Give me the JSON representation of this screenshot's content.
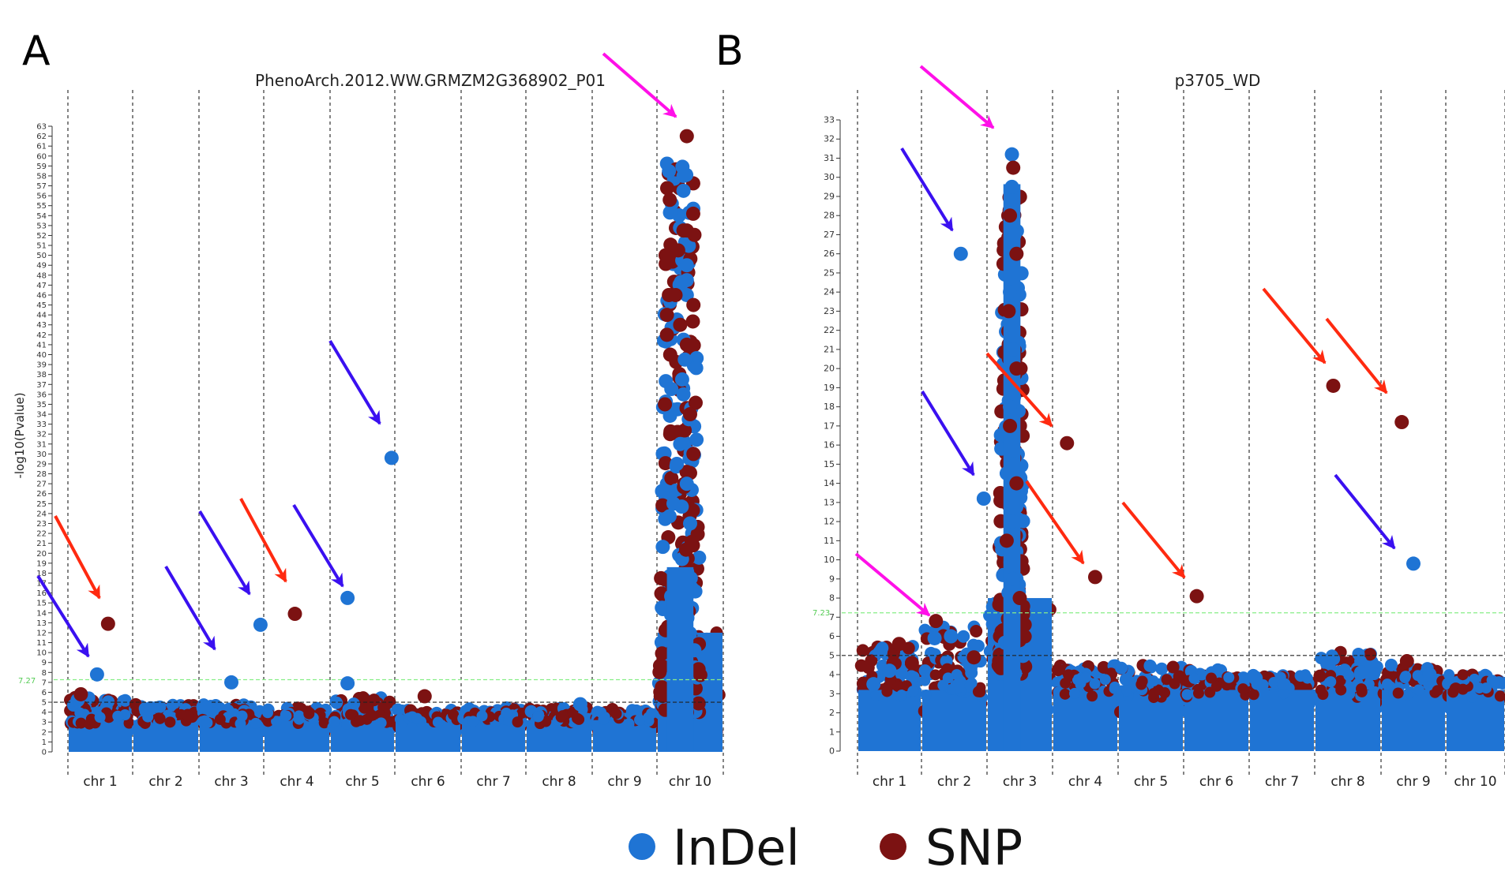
{
  "panels": [
    {
      "letter": "A",
      "title": "PhenoArch.2012.WW.GRMZM2G368902_P01",
      "ylabel": "-log10(Pvalue)",
      "ytick_values": [
        0,
        1,
        2,
        3,
        4,
        5,
        6,
        7,
        8,
        9,
        10,
        11,
        12,
        13,
        14,
        15,
        16,
        17,
        18,
        19,
        20,
        21,
        22,
        23,
        24,
        25,
        26,
        27,
        28,
        29,
        30,
        31,
        32,
        33,
        34,
        35,
        36,
        37,
        38,
        39,
        40,
        41,
        42,
        43,
        44,
        45,
        46,
        47,
        48,
        49,
        50,
        51,
        52,
        53,
        54,
        55,
        56,
        57,
        58,
        59,
        60,
        61,
        62,
        63
      ],
      "threshold_label": "7.27"
    },
    {
      "letter": "B",
      "title": "p3705_WD",
      "ylabel": "",
      "ytick_values": [
        0,
        1,
        2,
        3,
        4,
        5,
        6,
        7,
        8,
        9,
        10,
        11,
        12,
        13,
        14,
        15,
        16,
        17,
        18,
        19,
        20,
        21,
        22,
        23,
        24,
        25,
        26,
        27,
        28,
        29,
        30,
        31,
        32,
        33
      ],
      "threshold_label": "7.23"
    }
  ],
  "legend": {
    "indel_label": "InDel",
    "snp_label": "SNP"
  },
  "colors": {
    "indel": "#1f74d4",
    "snp": "#7c1212",
    "arrow_blue": "#3a10f0",
    "arrow_red": "#ff2a10",
    "arrow_magenta": "#ff10e8",
    "threshold": "#88ee88",
    "suggestive": "#222222"
  },
  "chart_data": [
    {
      "type": "scatter",
      "title": "PhenoArch.2012.WW.GRMZM2G368902_P01",
      "xlabel": "",
      "ylabel": "-log10(Pvalue)",
      "ylim": [
        0,
        63
      ],
      "categories": [
        "chr 1",
        "chr 2",
        "chr 3",
        "chr 4",
        "chr 5",
        "chr 6",
        "chr 7",
        "chr 8",
        "chr 9",
        "chr 10"
      ],
      "grid": "vertical dashed chromosome dividers",
      "genome_wide_threshold": 7.27,
      "suggestive_threshold": 5,
      "background_max": [
        5.5,
        4.8,
        4.8,
        4.5,
        5.5,
        4.3,
        4.5,
        4.5,
        4.3,
        12
      ],
      "peak": {
        "chr": 10,
        "pos": 0.35,
        "max": 62
      },
      "series": [
        {
          "name": "InDel",
          "points": [
            {
              "chr": 1,
              "pos": 0.45,
              "y": 7.8
            },
            {
              "chr": 3,
              "pos": 0.5,
              "y": 7.0
            },
            {
              "chr": 3,
              "pos": 0.95,
              "y": 12.8
            },
            {
              "chr": 5,
              "pos": 0.27,
              "y": 15.5
            },
            {
              "chr": 5,
              "pos": 0.27,
              "y": 6.9
            },
            {
              "chr": 5,
              "pos": 0.95,
              "y": 29.6
            },
            {
              "chr": 8,
              "pos": 0.82,
              "y": 4.8
            },
            {
              "chr": 1,
              "pos": 0.15,
              "y": 5.2
            },
            {
              "chr": 3,
              "pos": 0.1,
              "y": 4.5
            },
            {
              "chr": 10,
              "pos": 0.4,
              "y": 58
            },
            {
              "chr": 10,
              "pos": 0.4,
              "y": 56.5
            },
            {
              "chr": 10,
              "pos": 0.45,
              "y": 49
            },
            {
              "chr": 10,
              "pos": 0.45,
              "y": 47.5
            },
            {
              "chr": 10,
              "pos": 0.45,
              "y": 46
            },
            {
              "chr": 10,
              "pos": 0.4,
              "y": 41.5
            },
            {
              "chr": 10,
              "pos": 0.42,
              "y": 39.5
            },
            {
              "chr": 10,
              "pos": 0.38,
              "y": 37.5
            },
            {
              "chr": 10,
              "pos": 0.4,
              "y": 36
            },
            {
              "chr": 10,
              "pos": 0.48,
              "y": 33.5
            },
            {
              "chr": 10,
              "pos": 0.35,
              "y": 31
            },
            {
              "chr": 10,
              "pos": 0.3,
              "y": 29
            },
            {
              "chr": 10,
              "pos": 0.45,
              "y": 27
            },
            {
              "chr": 10,
              "pos": 0.25,
              "y": 25
            },
            {
              "chr": 10,
              "pos": 0.5,
              "y": 23
            }
          ]
        },
        {
          "name": "SNP",
          "points": [
            {
              "chr": 1,
              "pos": 0.62,
              "y": 12.9
            },
            {
              "chr": 4,
              "pos": 0.47,
              "y": 13.9
            },
            {
              "chr": 6,
              "pos": 0.45,
              "y": 5.6
            },
            {
              "chr": 1,
              "pos": 0.2,
              "y": 5.8
            },
            {
              "chr": 10,
              "pos": 0.45,
              "y": 62
            },
            {
              "chr": 10,
              "pos": 0.4,
              "y": 52.5
            },
            {
              "chr": 10,
              "pos": 0.45,
              "y": 52.5
            },
            {
              "chr": 10,
              "pos": 0.32,
              "y": 50.5
            },
            {
              "chr": 10,
              "pos": 0.18,
              "y": 46
            },
            {
              "chr": 10,
              "pos": 0.28,
              "y": 46
            },
            {
              "chr": 10,
              "pos": 0.55,
              "y": 45
            },
            {
              "chr": 10,
              "pos": 0.15,
              "y": 44
            },
            {
              "chr": 10,
              "pos": 0.35,
              "y": 43
            },
            {
              "chr": 10,
              "pos": 0.15,
              "y": 42
            },
            {
              "chr": 10,
              "pos": 0.45,
              "y": 41
            },
            {
              "chr": 10,
              "pos": 0.2,
              "y": 40
            },
            {
              "chr": 10,
              "pos": 0.12,
              "y": 35
            },
            {
              "chr": 10,
              "pos": 0.5,
              "y": 34
            },
            {
              "chr": 10,
              "pos": 0.2,
              "y": 32
            },
            {
              "chr": 10,
              "pos": 0.55,
              "y": 30
            }
          ]
        }
      ]
    },
    {
      "type": "scatter",
      "title": "p3705_WD",
      "xlabel": "",
      "ylabel": "",
      "ylim": [
        0,
        33
      ],
      "categories": [
        "chr 1",
        "chr 2",
        "chr 3",
        "chr 4",
        "chr 5",
        "chr 6",
        "chr 7",
        "chr 8",
        "chr 9",
        "chr 10"
      ],
      "grid": "vertical dashed chromosome dividers",
      "genome_wide_threshold": 7.23,
      "suggestive_threshold": 5,
      "background_max": [
        5.5,
        6.5,
        8,
        4.5,
        4.5,
        4.3,
        4.0,
        5.2,
        4.5,
        4.0
      ],
      "peak": {
        "chr": 3,
        "pos": 0.38,
        "max": 31.2
      },
      "series": [
        {
          "name": "InDel",
          "points": [
            {
              "chr": 2,
              "pos": 0.6,
              "y": 26.0
            },
            {
              "chr": 2,
              "pos": 0.95,
              "y": 13.2
            },
            {
              "chr": 9,
              "pos": 0.5,
              "y": 9.8
            },
            {
              "chr": 3,
              "pos": 0.38,
              "y": 31.2
            },
            {
              "chr": 2,
              "pos": 0.2,
              "y": 5.9
            },
            {
              "chr": 2,
              "pos": 0.45,
              "y": 6.0
            },
            {
              "chr": 1,
              "pos": 0.25,
              "y": 3.5
            },
            {
              "chr": 2,
              "pos": 0.55,
              "y": 3.4
            },
            {
              "chr": 7,
              "pos": 0.1,
              "y": 3.8
            },
            {
              "chr": 8,
              "pos": 0.7,
              "y": 4.1
            },
            {
              "chr": 9,
              "pos": 0.75,
              "y": 4.0
            },
            {
              "chr": 1,
              "pos": 0.5,
              "y": 4.2
            },
            {
              "chr": 3,
              "pos": 0.38,
              "y": 29.5
            },
            {
              "chr": 3,
              "pos": 0.42,
              "y": 27
            },
            {
              "chr": 3,
              "pos": 0.35,
              "y": 24
            },
            {
              "chr": 3,
              "pos": 0.4,
              "y": 21
            },
            {
              "chr": 3,
              "pos": 0.35,
              "y": 18
            },
            {
              "chr": 3,
              "pos": 0.4,
              "y": 15
            },
            {
              "chr": 3,
              "pos": 0.38,
              "y": 12
            },
            {
              "chr": 3,
              "pos": 0.4,
              "y": 9
            }
          ]
        },
        {
          "name": "SNP",
          "points": [
            {
              "chr": 2,
              "pos": 0.22,
              "y": 6.8
            },
            {
              "chr": 4,
              "pos": 0.22,
              "y": 16.1
            },
            {
              "chr": 4,
              "pos": 0.65,
              "y": 9.1
            },
            {
              "chr": 6,
              "pos": 0.2,
              "y": 8.1
            },
            {
              "chr": 8,
              "pos": 0.28,
              "y": 19.1
            },
            {
              "chr": 9,
              "pos": 0.32,
              "y": 17.2
            },
            {
              "chr": 1,
              "pos": 0.65,
              "y": 5.6
            },
            {
              "chr": 1,
              "pos": 0.85,
              "y": 4.6
            },
            {
              "chr": 2,
              "pos": 0.8,
              "y": 4.9
            },
            {
              "chr": 9,
              "pos": 0.4,
              "y": 4.7
            },
            {
              "chr": 3,
              "pos": 0.4,
              "y": 30.5
            },
            {
              "chr": 3,
              "pos": 0.35,
              "y": 28
            },
            {
              "chr": 3,
              "pos": 0.45,
              "y": 26
            },
            {
              "chr": 3,
              "pos": 0.33,
              "y": 23
            },
            {
              "chr": 3,
              "pos": 0.45,
              "y": 20
            },
            {
              "chr": 3,
              "pos": 0.35,
              "y": 17
            },
            {
              "chr": 3,
              "pos": 0.45,
              "y": 14
            },
            {
              "chr": 3,
              "pos": 0.3,
              "y": 11
            },
            {
              "chr": 3,
              "pos": 0.5,
              "y": 8
            }
          ]
        }
      ]
    }
  ]
}
